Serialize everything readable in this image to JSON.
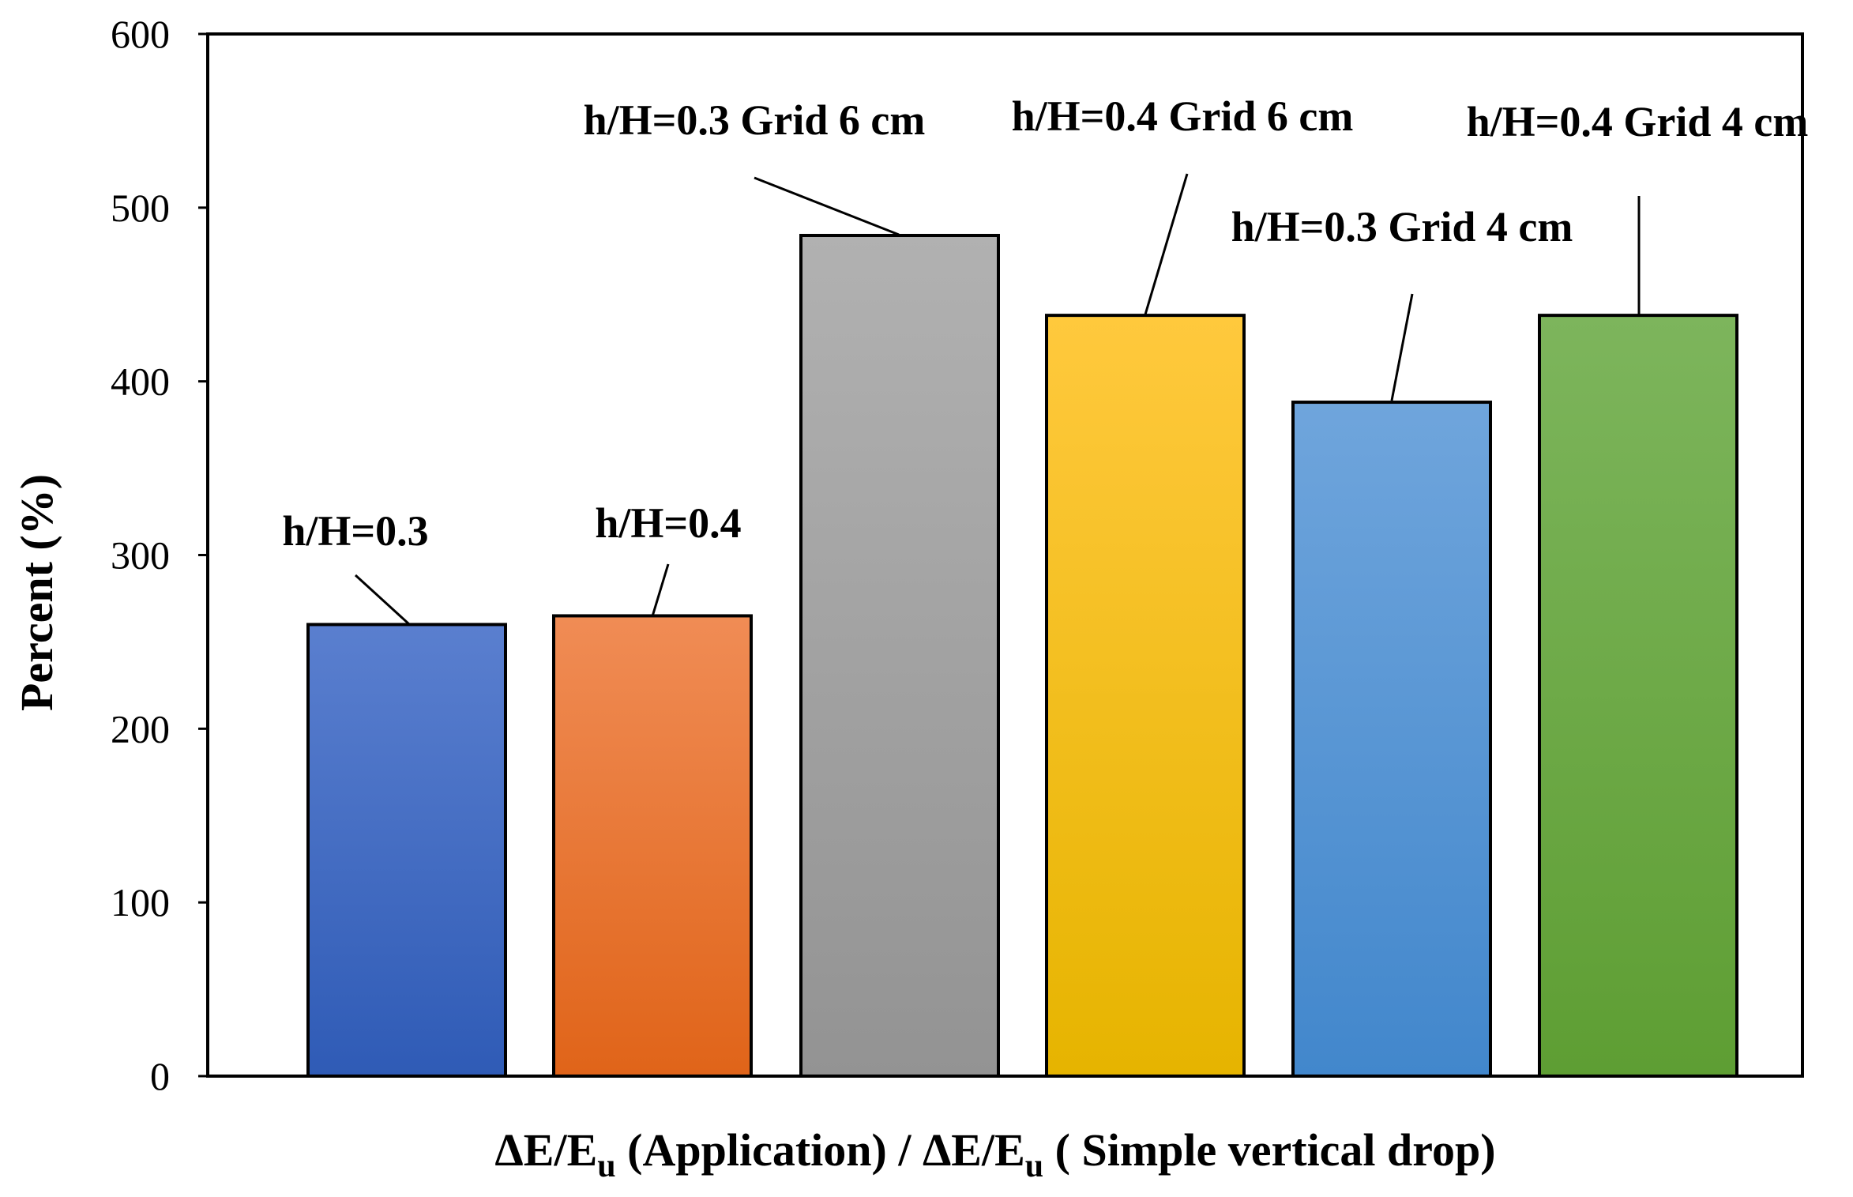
{
  "chart_data": {
    "type": "bar",
    "categories": [
      "h/H=0.3",
      "h/H=0.4",
      "h/H=0.3 Grid 6 cm",
      "h/H=0.4 Grid 6 cm",
      "h/H=0.3 Grid 4 cm",
      "h/H=0.4 Grid 4 cm"
    ],
    "values": [
      260,
      265,
      484,
      438,
      388,
      438
    ],
    "colors": [
      [
        "#5a7fcf",
        "#2f5bb6"
      ],
      [
        "#f08c55",
        "#e06419"
      ],
      [
        "#b1b1b1",
        "#939393"
      ],
      [
        "#ffc93d",
        "#e6b400"
      ],
      [
        "#6fa5dc",
        "#4287cc"
      ],
      [
        "#7db55c",
        "#5e9e33"
      ]
    ],
    "ylabel": "Percent (%)",
    "xlabel": {
      "part1": "ΔE/E",
      "sub1": "u",
      "part2": " (Application) / ΔE/E",
      "sub2": "u",
      "part3": " ( Simple vertical drop)"
    },
    "ylim": [
      0,
      600
    ],
    "yticks": [
      0,
      100,
      200,
      300,
      400,
      500,
      600
    ],
    "grid": false
  }
}
